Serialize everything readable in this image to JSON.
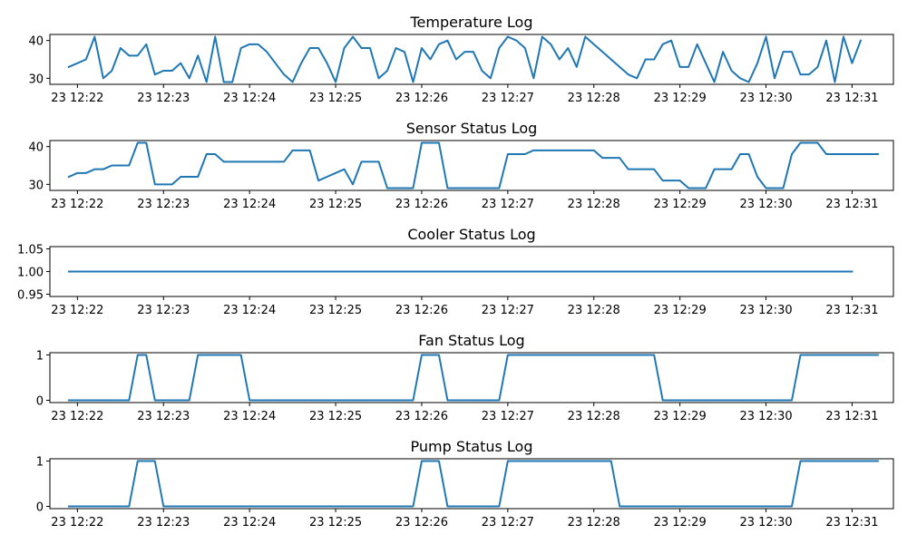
{
  "line_color": "#1f77b4",
  "chart_data": [
    {
      "type": "line",
      "title": "Temperature Log",
      "x_ticks": [
        0,
        1,
        2,
        3,
        4,
        5,
        6,
        7,
        8,
        9
      ],
      "x_tick_labels": [
        "23 12:22",
        "23 12:23",
        "23 12:24",
        "23 12:25",
        "23 12:26",
        "23 12:27",
        "23 12:28",
        "23 12:29",
        "23 12:30",
        "23 12:31"
      ],
      "xlim": [
        -0.32,
        9.48
      ],
      "ylim": [
        28.4,
        41.6
      ],
      "y_ticks": [
        30,
        40
      ],
      "y_tick_labels": [
        "30",
        "40"
      ],
      "x_step_minutes": 0.1,
      "x_start_minute": -0.1,
      "values": [
        33,
        34,
        35,
        41,
        30,
        32,
        38,
        36,
        36,
        39,
        31,
        32,
        32,
        34,
        30,
        36,
        29,
        41,
        29,
        29,
        38,
        39,
        39,
        37,
        34,
        31,
        29,
        34,
        38,
        38,
        34,
        29,
        38,
        41,
        38,
        38,
        30,
        32,
        38,
        37,
        29,
        38,
        35,
        39,
        40,
        35,
        37,
        37,
        32,
        30,
        38,
        41,
        40,
        38,
        30,
        41,
        39,
        35,
        38,
        33,
        41,
        39,
        37,
        35,
        33,
        31,
        30,
        35,
        35,
        39,
        40,
        33,
        33,
        39,
        34,
        29,
        37,
        32,
        30,
        29,
        34,
        41,
        30,
        37,
        37,
        31,
        31,
        33,
        40,
        29,
        41,
        34,
        40
      ]
    },
    {
      "type": "line",
      "title": "Sensor Status Log",
      "x_ticks": [
        0,
        1,
        2,
        3,
        4,
        5,
        6,
        7,
        8,
        9
      ],
      "x_tick_labels": [
        "23 12:22",
        "23 12:23",
        "23 12:24",
        "23 12:25",
        "23 12:26",
        "23 12:27",
        "23 12:28",
        "23 12:29",
        "23 12:30",
        "23 12:31"
      ],
      "xlim": [
        -0.32,
        9.48
      ],
      "ylim": [
        28.4,
        41.6
      ],
      "y_ticks": [
        30,
        40
      ],
      "y_tick_labels": [
        "30",
        "40"
      ],
      "x_step_minutes": 0.1,
      "x_start_minute": -0.1,
      "values": [
        32,
        33,
        33,
        34,
        34,
        35,
        35,
        35,
        41,
        41,
        30,
        30,
        30,
        32,
        32,
        32,
        38,
        38,
        36,
        36,
        36,
        36,
        36,
        36,
        36,
        36,
        39,
        39,
        39,
        31,
        32,
        33,
        34,
        30,
        36,
        36,
        36,
        29,
        29,
        29,
        29,
        41,
        41,
        41,
        29,
        29,
        29,
        29,
        29,
        29,
        29,
        38,
        38,
        38,
        39,
        39,
        39,
        39,
        39,
        39,
        39,
        39,
        37,
        37,
        37,
        34,
        34,
        34,
        34,
        31,
        31,
        31,
        29,
        29,
        29,
        34,
        34,
        34,
        38,
        38,
        32,
        29,
        29,
        29,
        38,
        41,
        41,
        41,
        38,
        38,
        38,
        38,
        38,
        38,
        38
      ]
    },
    {
      "type": "line",
      "title": "Cooler Status Log",
      "x_ticks": [
        0,
        1,
        2,
        3,
        4,
        5,
        6,
        7,
        8,
        9
      ],
      "x_tick_labels": [
        "23 12:22",
        "23 12:23",
        "23 12:24",
        "23 12:25",
        "23 12:26",
        "23 12:27",
        "23 12:28",
        "23 12:29",
        "23 12:30",
        "23 12:31"
      ],
      "xlim": [
        -0.32,
        9.48
      ],
      "ylim": [
        0.945,
        1.055
      ],
      "y_ticks": [
        0.95,
        1.0,
        1.05
      ],
      "y_tick_labels": [
        "0.95",
        "1.00",
        "1.05"
      ],
      "x_step_minutes": 0.1,
      "x_start_minute": -0.1,
      "values": [
        1,
        1,
        1,
        1,
        1,
        1,
        1,
        1,
        1,
        1,
        1,
        1,
        1,
        1,
        1,
        1,
        1,
        1,
        1,
        1,
        1,
        1,
        1,
        1,
        1,
        1,
        1,
        1,
        1,
        1,
        1,
        1,
        1,
        1,
        1,
        1,
        1,
        1,
        1,
        1,
        1,
        1,
        1,
        1,
        1,
        1,
        1,
        1,
        1,
        1,
        1,
        1,
        1,
        1,
        1,
        1,
        1,
        1,
        1,
        1,
        1,
        1,
        1,
        1,
        1,
        1,
        1,
        1,
        1,
        1,
        1,
        1,
        1,
        1,
        1,
        1,
        1,
        1,
        1,
        1,
        1,
        1,
        1,
        1,
        1,
        1,
        1,
        1,
        1,
        1,
        1,
        1
      ]
    },
    {
      "type": "line",
      "title": "Fan Status Log",
      "x_ticks": [
        0,
        1,
        2,
        3,
        4,
        5,
        6,
        7,
        8,
        9
      ],
      "x_tick_labels": [
        "23 12:22",
        "23 12:23",
        "23 12:24",
        "23 12:25",
        "23 12:26",
        "23 12:27",
        "23 12:28",
        "23 12:29",
        "23 12:30",
        "23 12:31"
      ],
      "xlim": [
        -0.32,
        9.48
      ],
      "ylim": [
        -0.05,
        1.05
      ],
      "y_ticks": [
        0,
        1
      ],
      "y_tick_labels": [
        "0",
        "1"
      ],
      "x_step_minutes": 0.1,
      "x_start_minute": -0.1,
      "values": [
        0,
        0,
        0,
        0,
        0,
        0,
        0,
        0,
        1,
        1,
        0,
        0,
        0,
        0,
        0,
        1,
        1,
        1,
        1,
        1,
        1,
        0,
        0,
        0,
        0,
        0,
        0,
        0,
        0,
        0,
        0,
        0,
        0,
        0,
        0,
        0,
        0,
        0,
        0,
        0,
        0,
        1,
        1,
        1,
        0,
        0,
        0,
        0,
        0,
        0,
        0,
        1,
        1,
        1,
        1,
        1,
        1,
        1,
        1,
        1,
        1,
        1,
        1,
        1,
        1,
        1,
        1,
        1,
        1,
        0,
        0,
        0,
        0,
        0,
        0,
        0,
        0,
        0,
        0,
        0,
        0,
        0,
        0,
        0,
        0,
        1,
        1,
        1,
        1,
        1,
        1,
        1,
        1,
        1,
        1
      ]
    },
    {
      "type": "line",
      "title": "Pump Status Log",
      "x_ticks": [
        0,
        1,
        2,
        3,
        4,
        5,
        6,
        7,
        8,
        9
      ],
      "x_tick_labels": [
        "23 12:22",
        "23 12:23",
        "23 12:24",
        "23 12:25",
        "23 12:26",
        "23 12:27",
        "23 12:28",
        "23 12:29",
        "23 12:30",
        "23 12:31"
      ],
      "xlim": [
        -0.32,
        9.48
      ],
      "ylim": [
        -0.05,
        1.05
      ],
      "y_ticks": [
        0,
        1
      ],
      "y_tick_labels": [
        "0",
        "1"
      ],
      "x_step_minutes": 0.1,
      "x_start_minute": -0.1,
      "values": [
        0,
        0,
        0,
        0,
        0,
        0,
        0,
        0,
        1,
        1,
        1,
        0,
        0,
        0,
        0,
        0,
        0,
        0,
        0,
        0,
        0,
        0,
        0,
        0,
        0,
        0,
        0,
        0,
        0,
        0,
        0,
        0,
        0,
        0,
        0,
        0,
        0,
        0,
        0,
        0,
        0,
        1,
        1,
        1,
        0,
        0,
        0,
        0,
        0,
        0,
        0,
        1,
        1,
        1,
        1,
        1,
        1,
        1,
        1,
        1,
        1,
        1,
        1,
        1,
        0,
        0,
        0,
        0,
        0,
        0,
        0,
        0,
        0,
        0,
        0,
        0,
        0,
        0,
        0,
        0,
        0,
        0,
        0,
        0,
        0,
        1,
        1,
        1,
        1,
        1,
        1,
        1,
        1,
        1,
        1
      ]
    }
  ]
}
